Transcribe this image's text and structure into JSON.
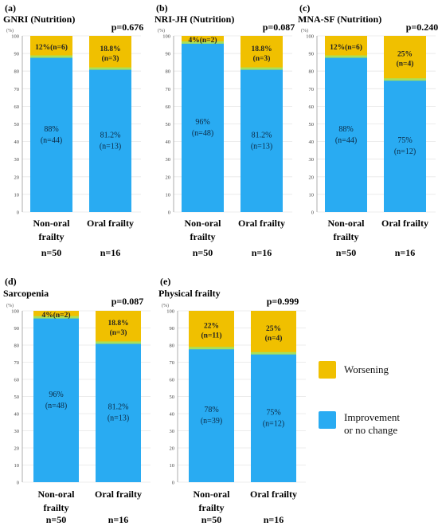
{
  "colors": {
    "worsening": "#F0C000",
    "improvement": "#29ABF2",
    "thin_separator_green": "#A8E05A",
    "thin_separator_purple": "#9C7FE8",
    "gridline": "#E6E6E6",
    "axis": "#999999"
  },
  "legend": {
    "worsening": "Worsening",
    "improvement": "Improvement\nor no change"
  },
  "chart_data": [
    {
      "type": "bar",
      "stacked": true,
      "panel": "(a)",
      "title": "GNRI (Nutrition)",
      "pvalue": "p=0.676",
      "yunit": "(%)",
      "ylim": [
        0,
        100
      ],
      "yticks": [
        "0",
        "10",
        "20",
        "30",
        "40",
        "50",
        "60",
        "70",
        "80",
        "90",
        "100"
      ],
      "categories": [
        "Non-oral\nfrailty",
        "Oral frailty"
      ],
      "n_labels": [
        "n=50",
        "n=16"
      ],
      "series": [
        {
          "name": "Improvement or no change",
          "values": [
            88,
            81.2
          ],
          "labels": [
            "88%\n(n=44)",
            "81.2%\n(n=13)"
          ]
        },
        {
          "name": "Worsening",
          "values": [
            12,
            18.8
          ],
          "labels": [
            "12%(n=6)",
            "18.8%\n(n=3)"
          ]
        }
      ]
    },
    {
      "type": "bar",
      "stacked": true,
      "panel": "(b)",
      "title": "NRI-JH (Nutrition)",
      "pvalue": "p=0.087",
      "yunit": "(%)",
      "ylim": [
        0,
        100
      ],
      "yticks": [
        "0",
        "10",
        "20",
        "30",
        "40",
        "50",
        "60",
        "70",
        "80",
        "90",
        "100"
      ],
      "categories": [
        "Non-oral\nfrailty",
        "Oral frailty"
      ],
      "n_labels": [
        "n=50",
        "n=16"
      ],
      "series": [
        {
          "name": "Improvement or no change",
          "values": [
            96,
            81.2
          ],
          "labels": [
            "96%\n(n=48)",
            "81.2%\n(n=13)"
          ]
        },
        {
          "name": "Worsening",
          "values": [
            4,
            18.8
          ],
          "labels": [
            "4%(n=2)",
            "18.8%\n(n=3)"
          ]
        }
      ]
    },
    {
      "type": "bar",
      "stacked": true,
      "panel": "(c)",
      "title": "MNA-SF (Nutrition)",
      "pvalue": "p=0.240",
      "yunit": "(%)",
      "ylim": [
        0,
        100
      ],
      "yticks": [
        "0",
        "10",
        "20",
        "30",
        "40",
        "50",
        "60",
        "70",
        "80",
        "90",
        "100"
      ],
      "categories": [
        "Non-oral\nfrailty",
        "Oral frailty"
      ],
      "n_labels": [
        "n=50",
        "n=16"
      ],
      "series": [
        {
          "name": "Improvement or no change",
          "values": [
            88,
            75
          ],
          "labels": [
            "88%\n(n=44)",
            "75%\n(n=12)"
          ]
        },
        {
          "name": "Worsening",
          "values": [
            12,
            25
          ],
          "labels": [
            "12%(n=6)",
            "25%\n(n=4)"
          ]
        }
      ]
    },
    {
      "type": "bar",
      "stacked": true,
      "panel": "(d)",
      "title": "Sarcopenia",
      "pvalue": "p=0.087",
      "yunit": "(%)",
      "ylim": [
        0,
        100
      ],
      "yticks": [
        "0",
        "10",
        "20",
        "30",
        "40",
        "50",
        "60",
        "70",
        "80",
        "90",
        "100"
      ],
      "categories": [
        "Non-oral\nfrailty",
        "Oral frailty"
      ],
      "n_labels": [
        "n=50",
        "n=16"
      ],
      "series": [
        {
          "name": "Improvement or no change",
          "values": [
            96,
            81.2
          ],
          "labels": [
            "96%\n(n=48)",
            "81.2%\n(n=13)"
          ]
        },
        {
          "name": "Worsening",
          "values": [
            4,
            18.8
          ],
          "labels": [
            "4%(n=2)",
            "18.8%\n(n=3)"
          ]
        }
      ]
    },
    {
      "type": "bar",
      "stacked": true,
      "panel": "(e)",
      "title": "Physical frailty",
      "pvalue": "p=0.999",
      "yunit": "(%)",
      "ylim": [
        0,
        100
      ],
      "yticks": [
        "0",
        "10",
        "20",
        "30",
        "40",
        "50",
        "60",
        "70",
        "80",
        "90",
        "100"
      ],
      "categories": [
        "Non-oral\nfrailty",
        "Oral frailty"
      ],
      "n_labels": [
        "n=50",
        "n=16"
      ],
      "series": [
        {
          "name": "Improvement or no change",
          "values": [
            78,
            75
          ],
          "labels": [
            "78%\n(n=39)",
            "75%\n(n=12)"
          ]
        },
        {
          "name": "Worsening",
          "values": [
            22,
            25
          ],
          "labels": [
            "22%\n(n=11)",
            "25%\n(n=4)"
          ]
        }
      ]
    }
  ]
}
